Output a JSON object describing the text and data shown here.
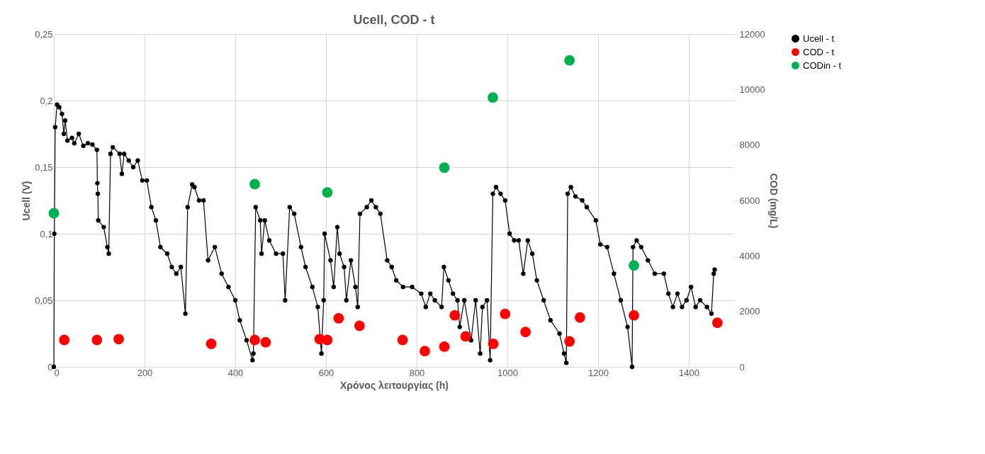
{
  "chart_data": {
    "type": "line",
    "title": "Ucell, COD - t",
    "xlabel": "Χρόνος λειτουργίας (h)",
    "ylabel": "Ucell (V)",
    "y2label": "COD (mg/L)",
    "xlim": [
      0,
      1500
    ],
    "xticks": [
      0,
      200,
      400,
      600,
      800,
      1000,
      1200,
      1400
    ],
    "ylim": [
      0,
      0.25
    ],
    "yticks": [
      0,
      {
        "value": 0.05,
        "label": "0,05"
      },
      {
        "value": 0.1,
        "label": "0,1"
      },
      {
        "value": 0.15,
        "label": "0,15"
      },
      {
        "value": 0.2,
        "label": "0,2"
      },
      {
        "value": 0.25,
        "label": "0,25"
      }
    ],
    "y2lim": [
      0,
      12000
    ],
    "y2ticks": [
      0,
      2000,
      4000,
      6000,
      8000,
      10000,
      12000
    ],
    "grid": true,
    "legend": "top right",
    "series": [
      {
        "name": "Ucell - t",
        "marker": "circle",
        "color": "#000000",
        "x": [
          0,
          1,
          3,
          7,
          12,
          18,
          22,
          25,
          30,
          40,
          45,
          55,
          65,
          75,
          85,
          95,
          96,
          97,
          98,
          110,
          118,
          121,
          125,
          130,
          145,
          150,
          155,
          165,
          175,
          185,
          195,
          205,
          215,
          225,
          235,
          250,
          260,
          270,
          280,
          290,
          295,
          305,
          310,
          320,
          330,
          340,
          355,
          370,
          385,
          400,
          410,
          425,
          438,
          440,
          445,
          455,
          458,
          465,
          475,
          490,
          505,
          510,
          520,
          530,
          545,
          555,
          570,
          582,
          590,
          595,
          597,
          610,
          617,
          625,
          630,
          640,
          645,
          655,
          665,
          670,
          675,
          690,
          700,
          710,
          720,
          735,
          745,
          755,
          770,
          790,
          810,
          820,
          830,
          840,
          855,
          860,
          870,
          880,
          890,
          895,
          905,
          920,
          930,
          940,
          945,
          955,
          962,
          968,
          975,
          985,
          995,
          1005,
          1015,
          1025,
          1035,
          1045,
          1055,
          1065,
          1080,
          1095,
          1115,
          1125,
          1130,
          1133,
          1140,
          1150,
          1165,
          1175,
          1195,
          1205,
          1220,
          1235,
          1250,
          1265,
          1275,
          1277,
          1285,
          1295,
          1310,
          1325,
          1345,
          1355,
          1365,
          1375,
          1385,
          1395,
          1405,
          1415,
          1425,
          1440,
          1450,
          1455,
          1457
        ],
        "values": [
          0.0,
          0.1,
          0.18,
          0.197,
          0.195,
          0.19,
          0.175,
          0.185,
          0.17,
          0.172,
          0.168,
          0.175,
          0.166,
          0.168,
          0.167,
          0.163,
          0.138,
          0.13,
          0.11,
          0.105,
          0.09,
          0.085,
          0.16,
          0.165,
          0.16,
          0.145,
          0.16,
          0.155,
          0.15,
          0.155,
          0.14,
          0.14,
          0.12,
          0.11,
          0.09,
          0.085,
          0.075,
          0.07,
          0.075,
          0.04,
          0.12,
          0.137,
          0.135,
          0.125,
          0.125,
          0.08,
          0.09,
          0.07,
          0.06,
          0.05,
          0.035,
          0.02,
          0.005,
          0.01,
          0.12,
          0.11,
          0.085,
          0.11,
          0.095,
          0.085,
          0.085,
          0.05,
          0.12,
          0.115,
          0.09,
          0.075,
          0.06,
          0.045,
          0.01,
          0.05,
          0.1,
          0.08,
          0.06,
          0.105,
          0.085,
          0.075,
          0.05,
          0.08,
          0.06,
          0.045,
          0.115,
          0.12,
          0.125,
          0.12,
          0.115,
          0.08,
          0.075,
          0.065,
          0.06,
          0.06,
          0.055,
          0.045,
          0.055,
          0.05,
          0.045,
          0.075,
          0.065,
          0.055,
          0.05,
          0.03,
          0.05,
          0.02,
          0.05,
          0.01,
          0.045,
          0.05,
          0.005,
          0.13,
          0.135,
          0.13,
          0.125,
          0.1,
          0.095,
          0.095,
          0.07,
          0.095,
          0.085,
          0.065,
          0.05,
          0.035,
          0.025,
          0.01,
          0.003,
          0.13,
          0.135,
          0.128,
          0.125,
          0.12,
          0.11,
          0.092,
          0.09,
          0.07,
          0.05,
          0.03,
          0.0,
          0.09,
          0.095,
          0.09,
          0.08,
          0.07,
          0.07,
          0.055,
          0.045,
          0.055,
          0.045,
          0.05,
          0.06,
          0.045,
          0.05,
          0.045,
          0.04,
          0.07,
          0.073
        ]
      },
      {
        "name": "COD - t",
        "type": "scatter",
        "axis": "y2",
        "marker": "circle",
        "color": "#ff0000",
        "x": [
          23,
          95,
          143,
          347,
          443,
          467,
          586,
          603,
          628,
          674,
          769,
          818,
          861,
          884,
          908,
          969,
          995,
          1040,
          1137,
          1160,
          1279,
          1463
        ],
        "values": [
          970,
          970,
          1000,
          830,
          970,
          890,
          1000,
          970,
          1750,
          1480,
          970,
          570,
          730,
          1860,
          1100,
          830,
          1910,
          1260,
          920,
          1780,
          1860,
          1590
        ]
      },
      {
        "name": "CODin - t",
        "type": "scatter",
        "axis": "y2",
        "marker": "circle",
        "color": "#00b050",
        "x": [
          0,
          443,
          603,
          861,
          968,
          1137,
          1279
        ],
        "values": [
          5540,
          6590,
          6290,
          7180,
          9710,
          11050,
          3660
        ]
      }
    ]
  }
}
